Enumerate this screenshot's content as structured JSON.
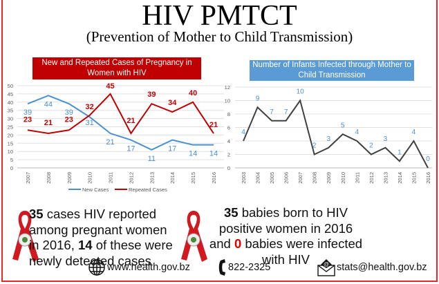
{
  "header": {
    "title": "HIV PMTCT",
    "subtitle": "(Prevention of Mother to Child Transmission)"
  },
  "colors": {
    "border": "#e8262b",
    "chart1_title_bg": "#c00000",
    "chart2_title_bg": "#5b9bd5",
    "new_cases": "#4a90d0",
    "repeated_cases": "#c00000",
    "infants_line": "#404040",
    "infant_labels": "#4a90d0"
  },
  "chart_data": [
    {
      "type": "line",
      "title": "New and Repeated Cases of Pregnancy in Women with HIV",
      "categories": [
        "2007",
        "2008",
        "2009",
        "2010",
        "2011",
        "2012",
        "2013",
        "2014",
        "2015",
        "2016"
      ],
      "series": [
        {
          "name": "New Cases",
          "values": [
            39,
            44,
            39,
            31,
            21,
            17,
            11,
            17,
            14,
            14
          ]
        },
        {
          "name": "Repeated Cases",
          "values": [
            23,
            21,
            23,
            32,
            45,
            21,
            39,
            34,
            40,
            21
          ]
        }
      ],
      "ylim": [
        0,
        50
      ],
      "yticks": [
        0,
        5,
        10,
        15,
        20,
        25,
        30,
        35,
        40,
        45,
        50
      ],
      "grid": true,
      "legend": "bottom",
      "data_labels": true
    },
    {
      "type": "line",
      "title": "Number of Infants Infected through Mother to Child Transmission",
      "categories": [
        "2003",
        "2004",
        "2005",
        "2006",
        "2007",
        "2008",
        "2009",
        "2010",
        "2011",
        "2012",
        "2013",
        "2014",
        "2015",
        "2016"
      ],
      "series": [
        {
          "values": [
            4,
            9,
            7,
            7,
            10,
            2,
            3,
            5,
            4,
            2,
            3,
            1,
            4,
            0
          ]
        }
      ],
      "ylim": [
        0,
        12
      ],
      "yticks": [
        0,
        2,
        4,
        6,
        8,
        10,
        12
      ],
      "grid": true,
      "legend": "none",
      "data_labels": true
    }
  ],
  "stats": {
    "left": {
      "num1": "35",
      "text1": " cases HIV reported among pregnant women in 2016, ",
      "num2": "14",
      "text2": " of these were newly detected cases"
    },
    "right": {
      "num1": "35",
      "text1": " babies born to HIV positive women in 2016 and ",
      "num2": "0",
      "text2": " babies were infected with HIV"
    }
  },
  "contacts": {
    "website": "www.health.gov.bz",
    "phone": "822-2325",
    "email": "stats@health.gov.bz"
  },
  "icons": [
    "red-ribbon-icon",
    "globe-icon",
    "phone-icon",
    "email-icon"
  ]
}
